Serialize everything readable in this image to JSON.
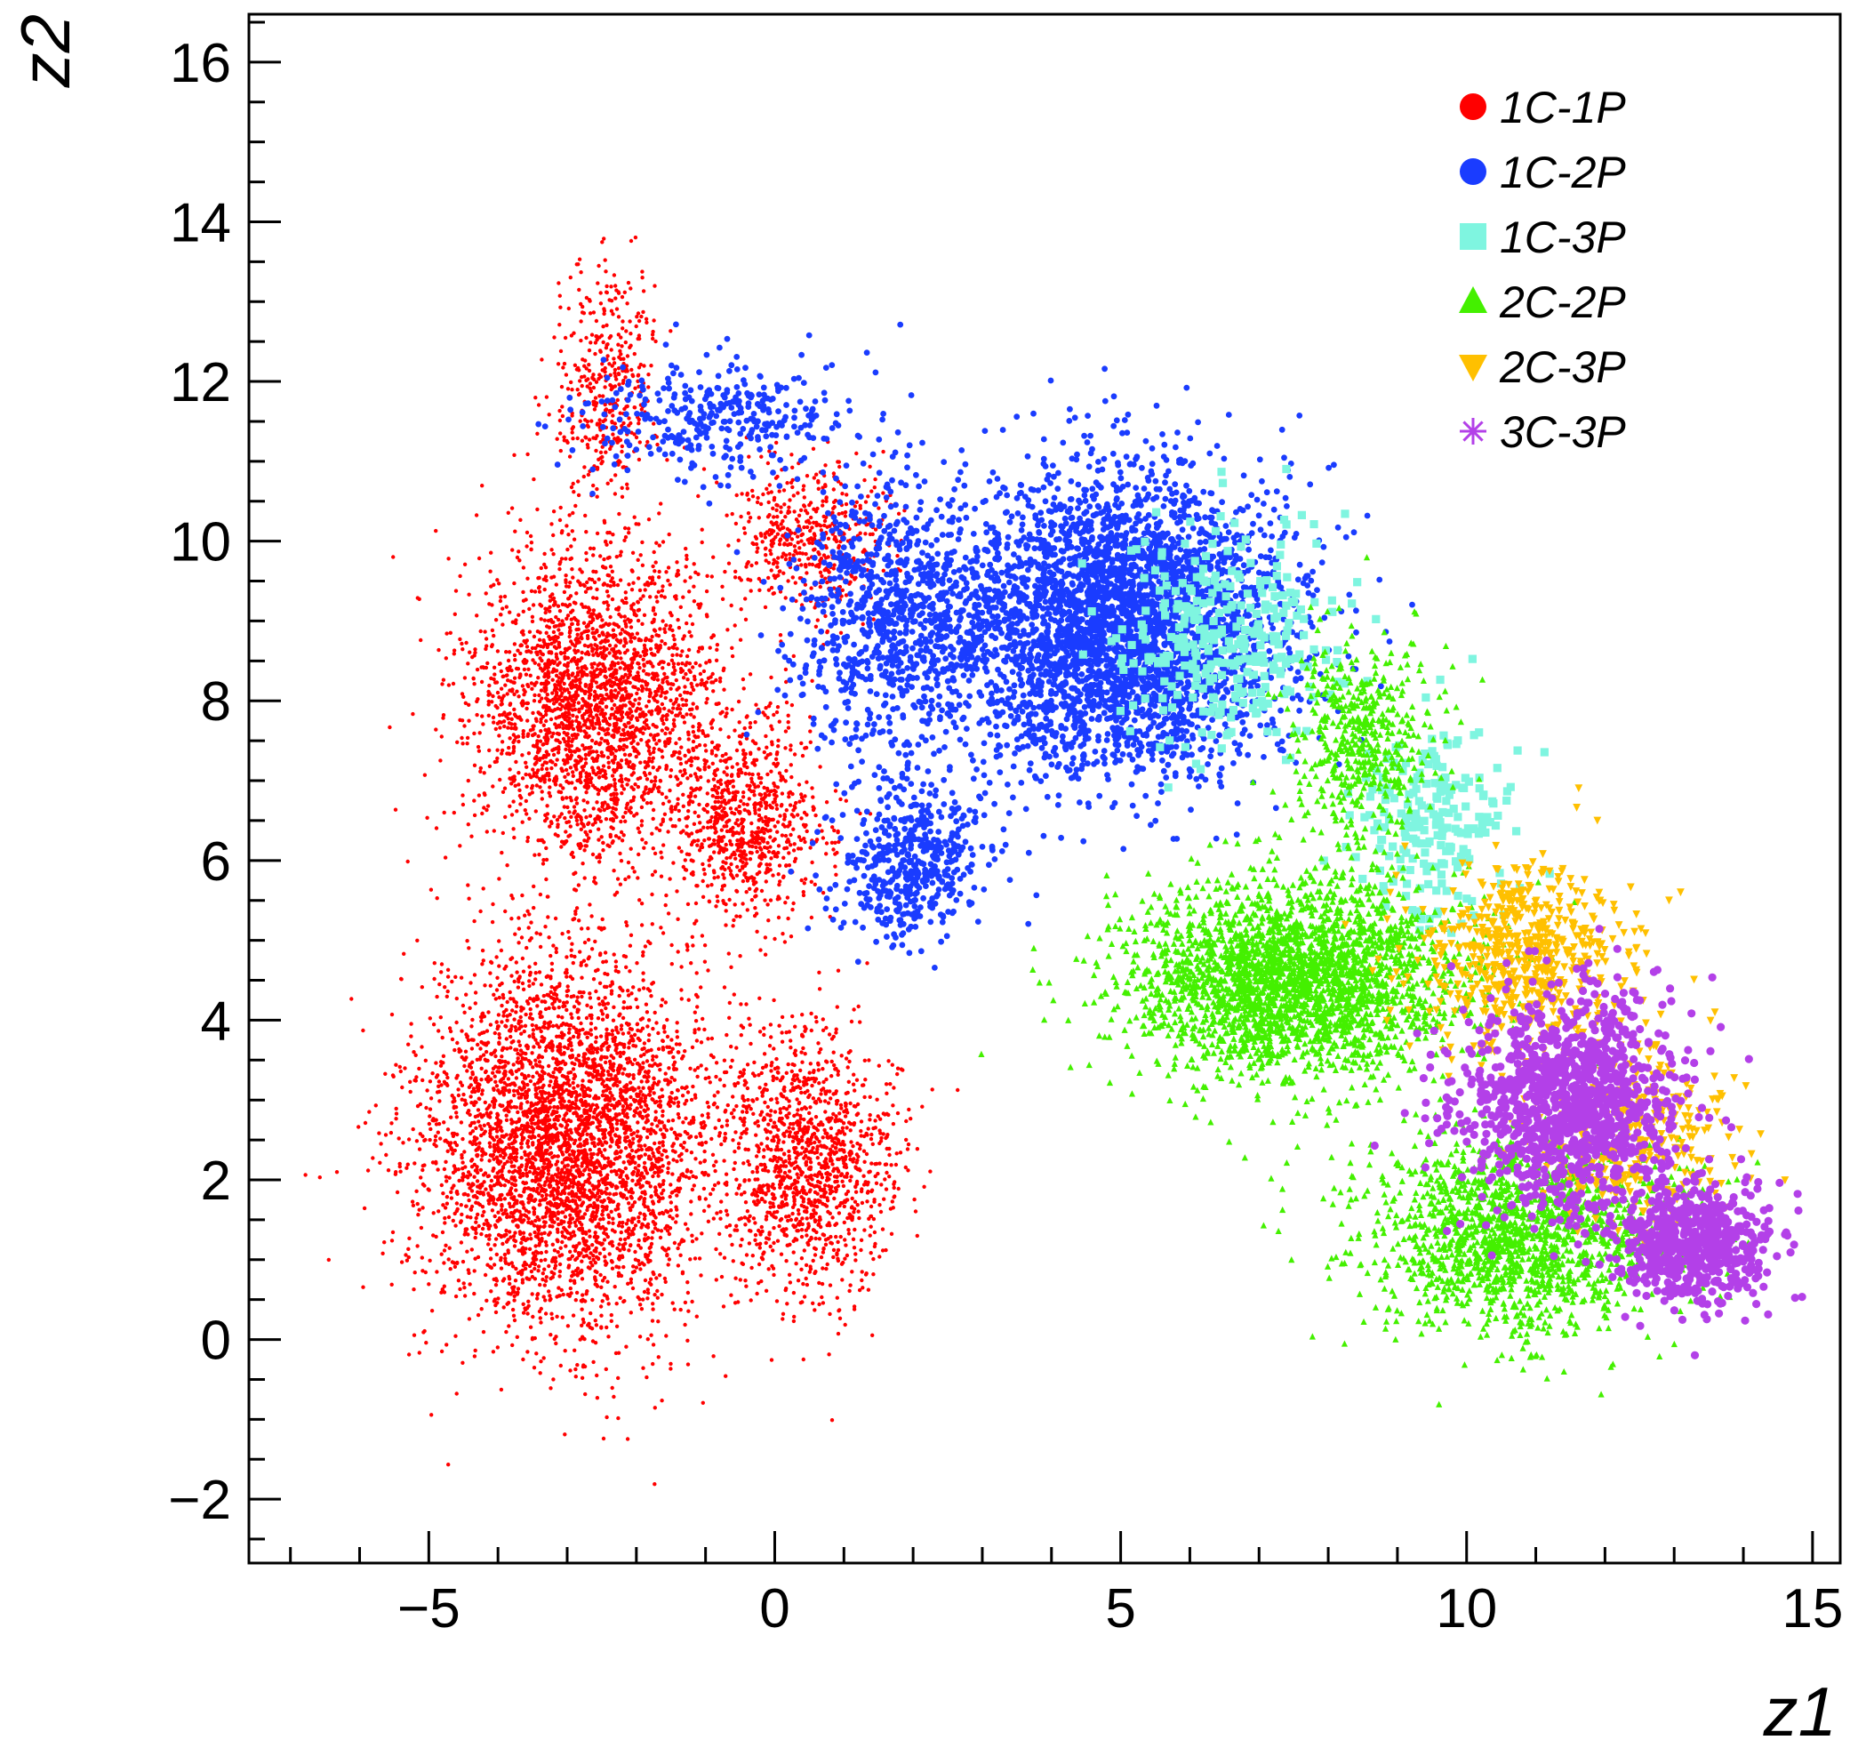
{
  "chart_data": {
    "type": "scatter",
    "xlabel": "z1",
    "ylabel": "z2",
    "xlim": [
      -7.6,
      15.4
    ],
    "ylim": [
      -2.8,
      16.6
    ],
    "x_ticks": [
      -5,
      0,
      5,
      10,
      15
    ],
    "x_tick_labels": [
      "−5",
      "0",
      "5",
      "10",
      "15"
    ],
    "y_ticks": [
      -2,
      0,
      2,
      4,
      6,
      8,
      10,
      12,
      14,
      16
    ],
    "y_tick_labels": [
      "−2",
      "0",
      "2",
      "4",
      "6",
      "8",
      "10",
      "12",
      "14",
      "16"
    ],
    "grid": false,
    "legend_position": "top-right",
    "series": [
      {
        "name": "1C-1P",
        "color": "#ff0000",
        "marker": "circle",
        "clusters": [
          {
            "cx": -3.0,
            "cy": 2.5,
            "sx": 1.7,
            "sy": 1.9,
            "n": 4200
          },
          {
            "cx": -2.6,
            "cy": 8.0,
            "sx": 1.4,
            "sy": 1.6,
            "n": 2600
          },
          {
            "cx": 0.5,
            "cy": 2.2,
            "sx": 1.0,
            "sy": 1.3,
            "n": 1300
          },
          {
            "cx": -0.4,
            "cy": 6.5,
            "sx": 0.9,
            "sy": 1.0,
            "n": 800
          },
          {
            "cx": -2.4,
            "cy": 12.0,
            "sx": 0.6,
            "sy": 1.2,
            "n": 400
          },
          {
            "cx": 0.5,
            "cy": 10.0,
            "sx": 0.9,
            "sy": 0.8,
            "n": 500
          }
        ]
      },
      {
        "name": "1C-2P",
        "color": "#1a3cff",
        "marker": "circle",
        "clusters": [
          {
            "cx": 5.0,
            "cy": 9.0,
            "sx": 1.9,
            "sy": 1.5,
            "n": 3600
          },
          {
            "cx": 1.8,
            "cy": 9.0,
            "sx": 1.2,
            "sy": 1.3,
            "n": 900
          },
          {
            "cx": 2.0,
            "cy": 6.0,
            "sx": 0.9,
            "sy": 0.9,
            "n": 500
          },
          {
            "cx": -0.8,
            "cy": 11.5,
            "sx": 1.5,
            "sy": 0.6,
            "n": 350
          }
        ]
      },
      {
        "name": "1C-3P",
        "color": "#7ff5e0",
        "marker": "square",
        "clusters": [
          {
            "cx": 6.5,
            "cy": 8.8,
            "sx": 1.3,
            "sy": 1.0,
            "n": 320
          },
          {
            "cx": 9.5,
            "cy": 6.5,
            "sx": 0.9,
            "sy": 1.0,
            "n": 220
          }
        ]
      },
      {
        "name": "2C-2P",
        "color": "#44f000",
        "marker": "triangle-up",
        "clusters": [
          {
            "cx": 7.5,
            "cy": 4.5,
            "sx": 1.9,
            "sy": 1.0,
            "n": 2600
          },
          {
            "cx": 10.8,
            "cy": 1.3,
            "sx": 1.8,
            "sy": 1.0,
            "n": 1600
          },
          {
            "cx": 8.5,
            "cy": 7.5,
            "sx": 0.8,
            "sy": 1.0,
            "n": 500
          }
        ]
      },
      {
        "name": "2C-3P",
        "color": "#ffc000",
        "marker": "triangle-down",
        "clusters": [
          {
            "cx": 10.8,
            "cy": 4.8,
            "sx": 1.2,
            "sy": 0.9,
            "n": 600
          },
          {
            "cx": 12.5,
            "cy": 2.5,
            "sx": 1.1,
            "sy": 0.9,
            "n": 350
          }
        ]
      },
      {
        "name": "3C-3P",
        "color": "#b340e8",
        "marker": "star",
        "clusters": [
          {
            "cx": 11.5,
            "cy": 3.0,
            "sx": 1.3,
            "sy": 1.1,
            "n": 1100
          },
          {
            "cx": 13.3,
            "cy": 1.2,
            "sx": 0.9,
            "sy": 0.6,
            "n": 600
          }
        ]
      }
    ]
  }
}
